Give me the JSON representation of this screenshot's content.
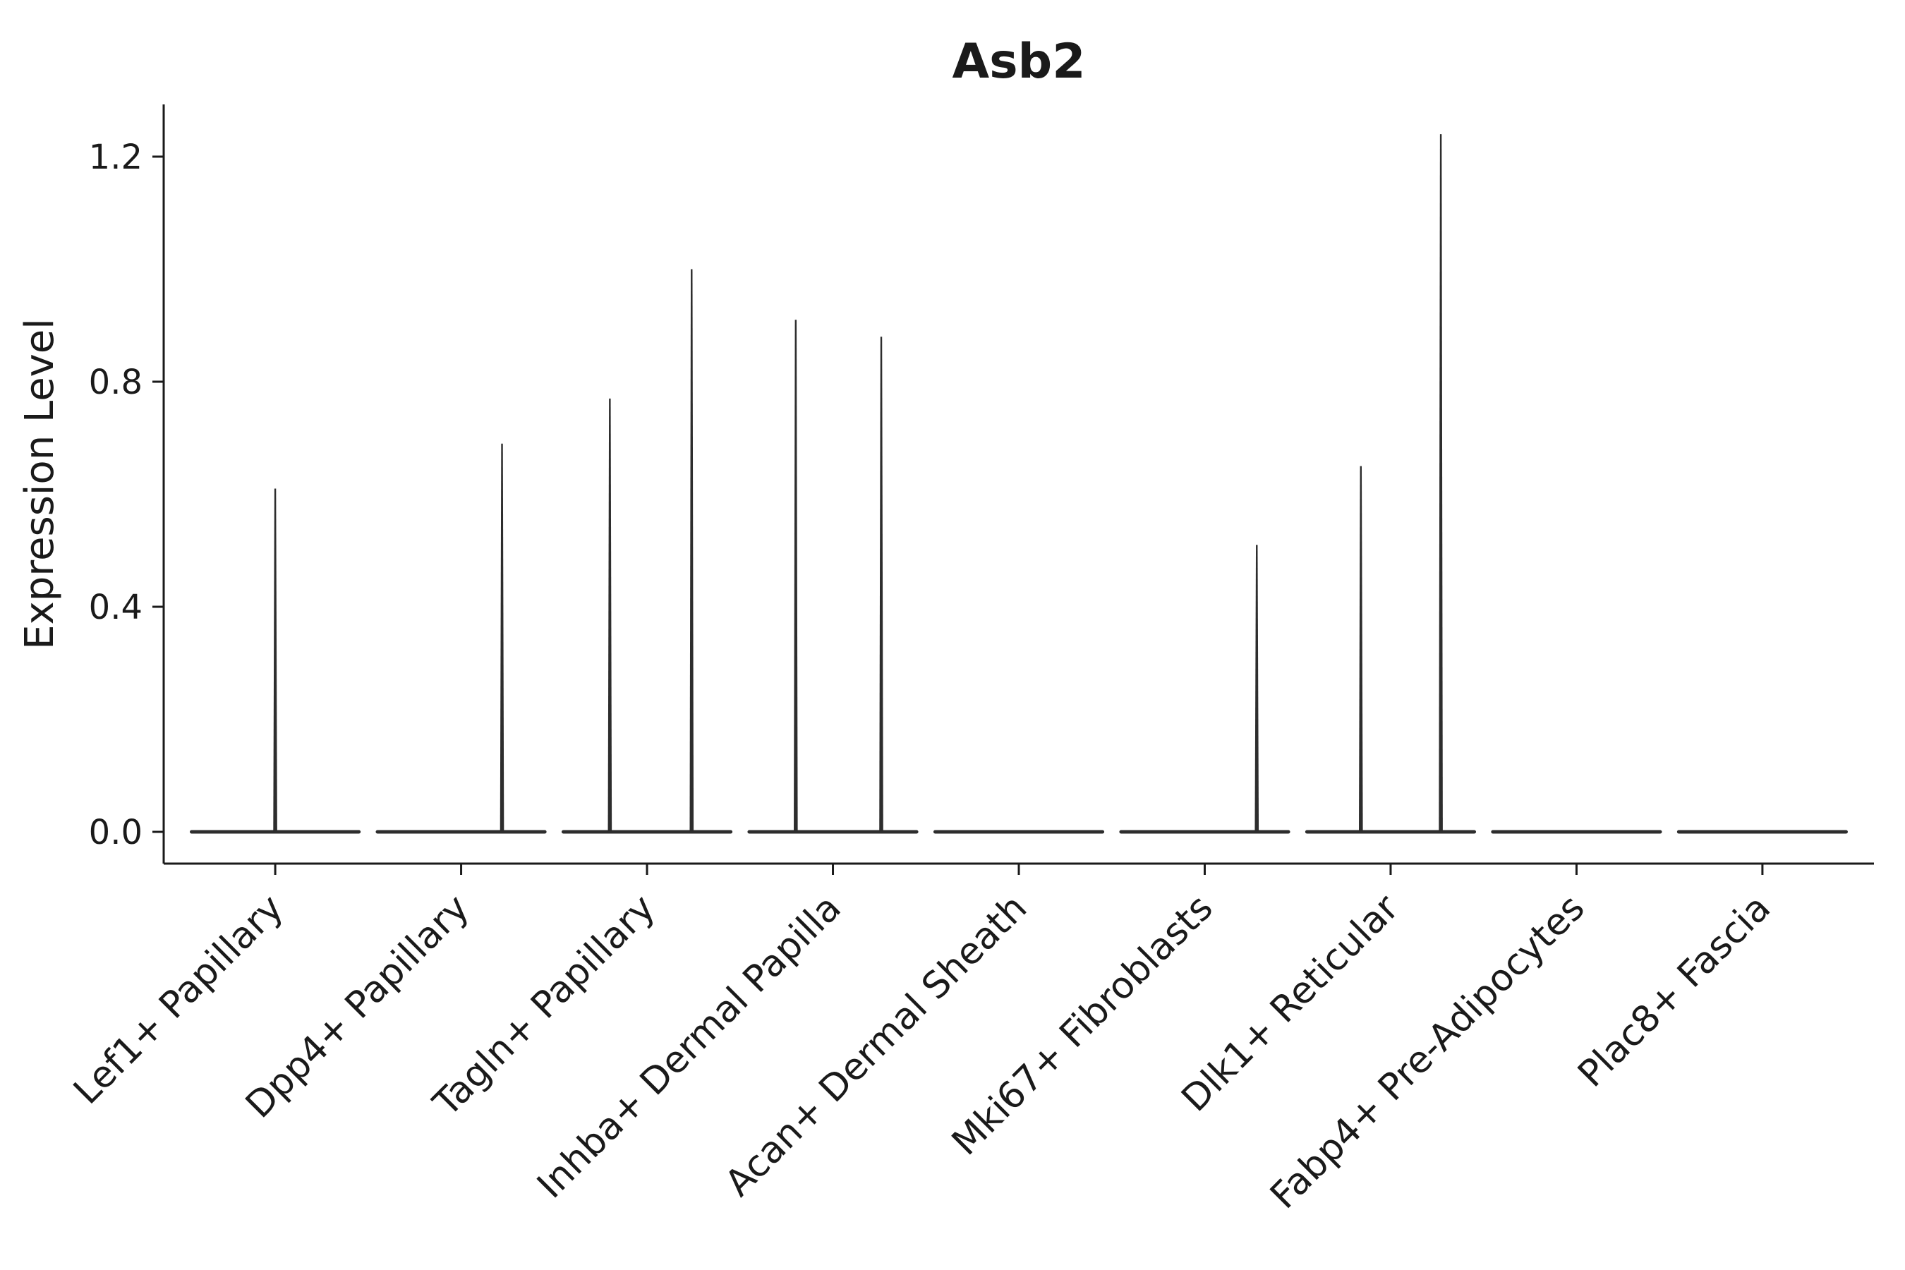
{
  "chart_data": {
    "type": "violin",
    "title": "Asb2",
    "ylabel": "Expression Level",
    "xlabel": "",
    "grid": false,
    "ylim": [
      -0.06,
      1.29
    ],
    "yticks": [
      "0.0",
      "0.4",
      "0.8",
      "1.2"
    ],
    "ytick_values": [
      0.0,
      0.4,
      0.8,
      1.2
    ],
    "categories": [
      "Lef1+ Papillary",
      "Dpp4+ Papillary",
      "Tagln+ Papillary",
      "Inhba+ Dermal Papilla",
      "Acan+ Dermal Sheath",
      "Mki67+ Fibroblasts",
      "Dlk1+ Reticular",
      "Fabp4+ Pre-Adipocytes",
      "Plac8+ Fascia"
    ],
    "baseline_value": 0.0,
    "violin_width": 0.9,
    "violins": [
      {
        "category": "Lef1+ Papillary",
        "baseline": 0.0,
        "spikes": [
          {
            "offset": 0.0,
            "max": 0.61
          }
        ]
      },
      {
        "category": "Dpp4+ Papillary",
        "baseline": 0.0,
        "spikes": [
          {
            "offset": 0.22,
            "max": 0.69
          }
        ]
      },
      {
        "category": "Tagln+ Papillary",
        "baseline": 0.0,
        "spikes": [
          {
            "offset": -0.2,
            "max": 0.77
          },
          {
            "offset": 0.24,
            "max": 1.0
          }
        ]
      },
      {
        "category": "Inhba+ Dermal Papilla",
        "baseline": 0.0,
        "spikes": [
          {
            "offset": -0.2,
            "max": 0.91
          },
          {
            "offset": 0.26,
            "max": 0.88
          }
        ]
      },
      {
        "category": "Acan+ Dermal Sheath",
        "baseline": 0.0,
        "spikes": []
      },
      {
        "category": "Mki67+ Fibroblasts",
        "baseline": 0.0,
        "spikes": [
          {
            "offset": 0.28,
            "max": 0.51
          }
        ]
      },
      {
        "category": "Dlk1+ Reticular",
        "baseline": 0.0,
        "spikes": [
          {
            "offset": -0.16,
            "max": 0.65
          },
          {
            "offset": 0.27,
            "max": 1.24
          }
        ]
      },
      {
        "category": "Fabp4+ Pre-Adipocytes",
        "baseline": 0.0,
        "spikes": []
      },
      {
        "category": "Plac8+ Fascia",
        "baseline": 0.0,
        "spikes": []
      }
    ],
    "colors": {
      "violin": "#2d2d2d",
      "axis": "#1a1a1a",
      "text": "#1a1a1a",
      "background": "#ffffff"
    }
  }
}
